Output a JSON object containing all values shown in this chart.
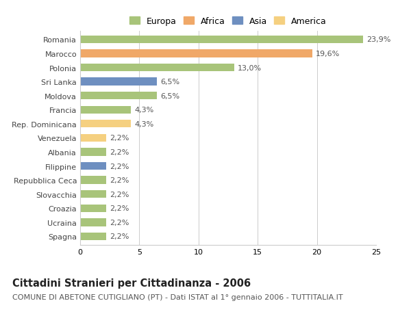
{
  "categories": [
    "Romania",
    "Marocco",
    "Polonia",
    "Sri Lanka",
    "Moldova",
    "Francia",
    "Rep. Dominicana",
    "Venezuela",
    "Albania",
    "Filippine",
    "Repubblica Ceca",
    "Slovacchia",
    "Croazia",
    "Ucraina",
    "Spagna"
  ],
  "values": [
    23.9,
    19.6,
    13.0,
    6.5,
    6.5,
    4.3,
    4.3,
    2.2,
    2.2,
    2.2,
    2.2,
    2.2,
    2.2,
    2.2,
    2.2
  ],
  "labels": [
    "23,9%",
    "19,6%",
    "13,0%",
    "6,5%",
    "6,5%",
    "4,3%",
    "4,3%",
    "2,2%",
    "2,2%",
    "2,2%",
    "2,2%",
    "2,2%",
    "2,2%",
    "2,2%",
    "2,2%"
  ],
  "colors": [
    "#a8c47a",
    "#f0a868",
    "#a8c47a",
    "#6e8fc0",
    "#a8c47a",
    "#a8c47a",
    "#f5d080",
    "#f5d080",
    "#a8c47a",
    "#6e8fc0",
    "#a8c47a",
    "#a8c47a",
    "#a8c47a",
    "#a8c47a",
    "#a8c47a"
  ],
  "legend_labels": [
    "Europa",
    "Africa",
    "Asia",
    "America"
  ],
  "legend_colors": [
    "#a8c47a",
    "#f0a868",
    "#6e8fc0",
    "#f5d080"
  ],
  "title": "Cittadini Stranieri per Cittadinanza - 2006",
  "subtitle": "COMUNE DI ABETONE CUTIGLIANO (PT) - Dati ISTAT al 1° gennaio 2006 - TUTTITALIA.IT",
  "xlim": [
    0,
    25
  ],
  "xticks": [
    0,
    5,
    10,
    15,
    20,
    25
  ],
  "background_color": "#ffffff",
  "grid_color": "#cccccc",
  "bar_height": 0.55,
  "title_fontsize": 10.5,
  "subtitle_fontsize": 8,
  "label_fontsize": 8,
  "tick_fontsize": 8,
  "legend_fontsize": 9
}
